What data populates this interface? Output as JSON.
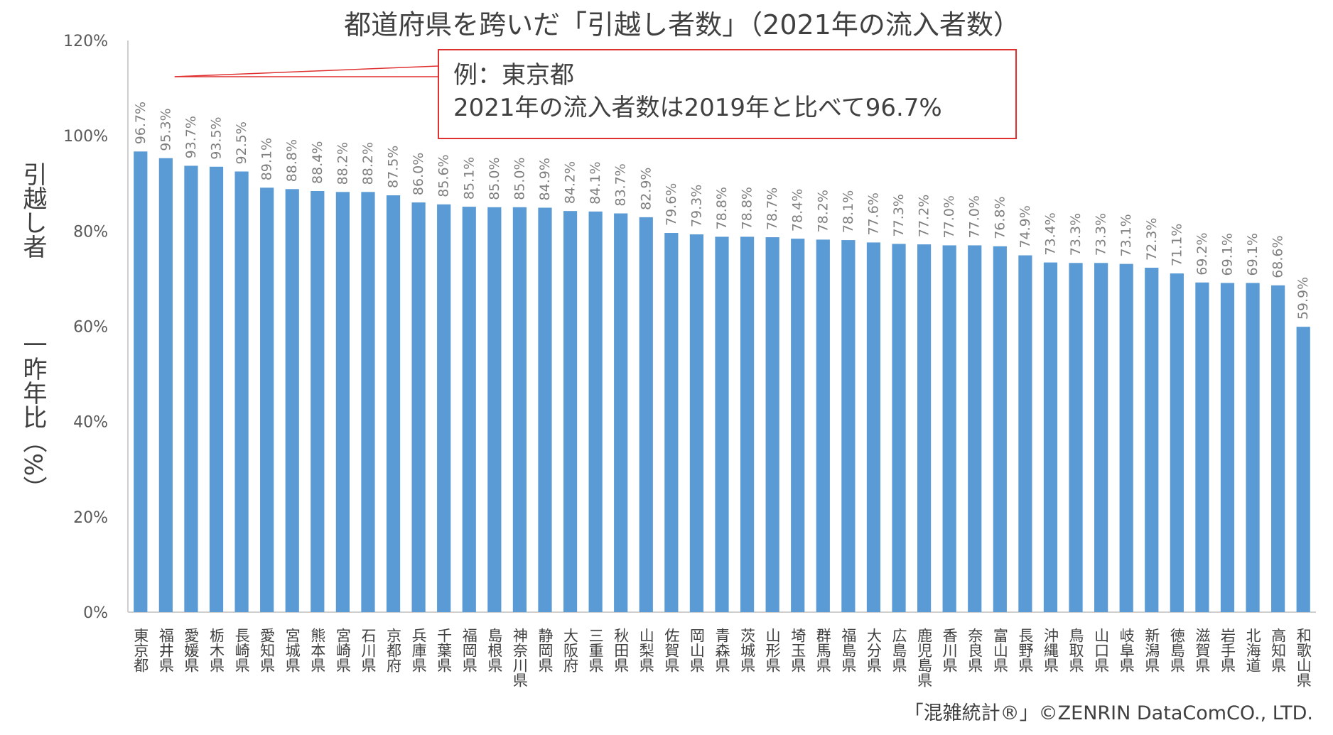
{
  "chart_data": {
    "type": "bar",
    "title": "都道府県を跨いだ「引越し者数」（2021年の流入者数）",
    "ylabel_top": "引越し者",
    "ylabel_bottom": "一昨年比（%）",
    "ylim": [
      0,
      120
    ],
    "yticks": [
      "0%",
      "20%",
      "40%",
      "60%",
      "80%",
      "100%",
      "120%"
    ],
    "ytick_values": [
      0,
      20,
      40,
      60,
      80,
      100,
      120
    ],
    "bar_color": "#5b9bd5",
    "categories": [
      "東京都",
      "福井県",
      "愛媛県",
      "栃木県",
      "長崎県",
      "愛知県",
      "宮城県",
      "熊本県",
      "宮崎県",
      "石川県",
      "京都府",
      "兵庫県",
      "千葉県",
      "福岡県",
      "島根県",
      "神奈川県",
      "静岡県",
      "大阪府",
      "三重県",
      "秋田県",
      "山梨県",
      "佐賀県",
      "岡山県",
      "青森県",
      "茨城県",
      "山形県",
      "埼玉県",
      "群馬県",
      "福島県",
      "大分県",
      "広島県",
      "鹿児島県",
      "香川県",
      "奈良県",
      "富山県",
      "長野県",
      "沖縄県",
      "鳥取県",
      "山口県",
      "岐阜県",
      "新潟県",
      "徳島県",
      "滋賀県",
      "岩手県",
      "北海道",
      "高知県",
      "和歌山県"
    ],
    "values": [
      96.7,
      95.3,
      93.7,
      93.5,
      92.5,
      89.1,
      88.8,
      88.4,
      88.2,
      88.2,
      87.5,
      86.0,
      85.6,
      85.1,
      85.0,
      85.0,
      84.9,
      84.2,
      84.1,
      83.7,
      82.9,
      79.6,
      79.3,
      78.8,
      78.8,
      78.7,
      78.4,
      78.2,
      78.1,
      77.6,
      77.3,
      77.2,
      77.0,
      77.0,
      76.8,
      74.9,
      73.4,
      73.3,
      73.3,
      73.1,
      72.3,
      71.1,
      69.2,
      69.1,
      69.1,
      68.6,
      59.9
    ],
    "data_labels": [
      "96.7%",
      "95.3%",
      "93.7%",
      "93.5%",
      "92.5%",
      "89.1%",
      "88.8%",
      "88.4%",
      "88.2%",
      "88.2%",
      "87.5%",
      "86.0%",
      "85.6%",
      "85.1%",
      "85.0%",
      "85.0%",
      "84.9%",
      "84.2%",
      "84.1%",
      "83.7%",
      "82.9%",
      "79.6%",
      "79.3%",
      "78.8%",
      "78.8%",
      "78.7%",
      "78.4%",
      "78.2%",
      "78.1%",
      "77.6%",
      "77.3%",
      "77.2%",
      "77.0%",
      "77.0%",
      "76.8%",
      "74.9%",
      "73.4%",
      "73.3%",
      "73.3%",
      "73.1%",
      "72.3%",
      "71.1%",
      "69.2%",
      "69.1%",
      "69.1%",
      "68.6%",
      "59.9%"
    ],
    "annotation": {
      "line1": "例：東京都",
      "line2": "2021年の流入者数は2019年と比べて96.7%",
      "border_color": "#e03030"
    },
    "credit": "「混雑統計®」©ZENRIN DataComCO., LTD."
  }
}
